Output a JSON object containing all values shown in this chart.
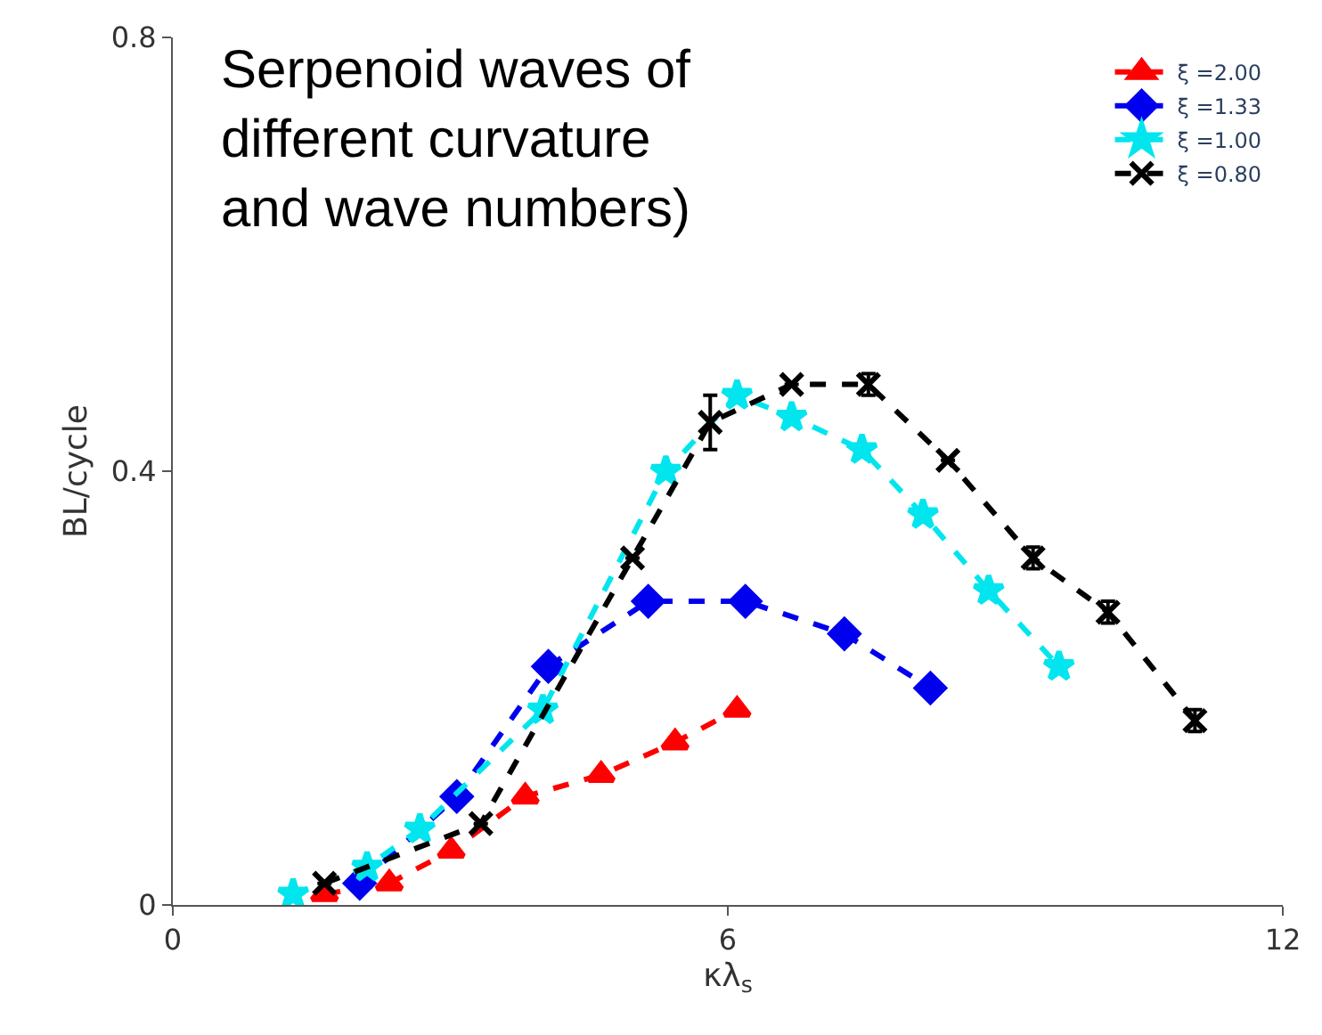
{
  "chart_data": {
    "type": "line",
    "title": "Serpenoid waves of\ndifferent curvature\nand wave numbers)",
    "xlabel": "κλ$_{s}$",
    "ylabel": "BL/cycle",
    "xlim": [
      0,
      12
    ],
    "xticks": [
      0,
      6,
      12
    ],
    "ylim": [
      0,
      0.8
    ],
    "yticks": [
      0,
      0.4,
      0.8
    ],
    "legend": "top right",
    "line_style": "dashed",
    "series": [
      {
        "name": "ξ =2.00",
        "color": "#ff0000",
        "marker": "triangle",
        "x": [
          1.64,
          2.34,
          3.01,
          3.81,
          4.63,
          5.43,
          6.1
        ],
        "values": [
          0.01,
          0.02,
          0.05,
          0.1,
          0.12,
          0.15,
          0.18
        ]
      },
      {
        "name": "ξ =1.33",
        "color": "#0000ee",
        "marker": "diamond",
        "x": [
          2.02,
          3.07,
          4.06,
          5.14,
          6.19,
          7.26,
          8.19
        ],
        "values": [
          0.02,
          0.1,
          0.22,
          0.28,
          0.28,
          0.25,
          0.2
        ]
      },
      {
        "name": "ξ =1.00",
        "color": "#00e5ee",
        "marker": "star",
        "x": [
          1.3,
          2.1,
          2.67,
          4.0,
          5.33,
          6.1,
          6.69,
          7.45,
          8.11,
          8.82,
          9.58
        ],
        "values": [
          0.01,
          0.035,
          0.07,
          0.18,
          0.4,
          0.47,
          0.45,
          0.42,
          0.36,
          0.29,
          0.22
        ]
      },
      {
        "name": "ξ =0.80",
        "color": "#000000",
        "marker": "cross",
        "x": [
          1.64,
          3.33,
          4.97,
          5.81,
          6.69,
          7.52,
          8.38,
          9.3,
          10.11,
          11.05
        ],
        "values": [
          0.02,
          0.075,
          0.32,
          0.445,
          0.48,
          0.48,
          0.41,
          0.32,
          0.27,
          0.17
        ],
        "errors": [
          null,
          null,
          null,
          0.025,
          null,
          0.01,
          null,
          0.01,
          0.01,
          0.01
        ]
      }
    ]
  }
}
